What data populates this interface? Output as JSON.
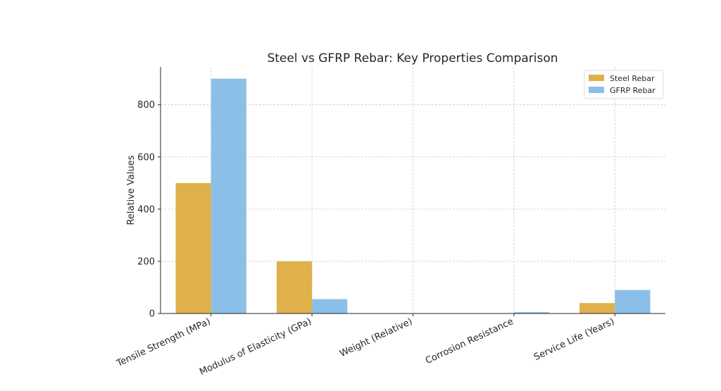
{
  "chart_data": {
    "type": "bar",
    "title": "Steel vs GFRP Rebar: Key Properties Comparison",
    "xlabel": "",
    "ylabel": "Relative Values",
    "categories": [
      "Tensile Strength (MPa)",
      "Modulus of Elasticity (GPa)",
      "Weight (Relative)",
      "Corrosion Resistance",
      "Service Life (Years)"
    ],
    "series": [
      {
        "name": "Steel Rebar",
        "color": "#E0B04A",
        "values": [
          500,
          200,
          1,
          1,
          40
        ]
      },
      {
        "name": "GFRP Rebar",
        "color": "#8BBFE8",
        "values": [
          900,
          55,
          0.25,
          5,
          90
        ]
      }
    ],
    "ylim": [
      0,
      945
    ],
    "yticks": [
      0,
      200,
      400,
      600,
      800
    ],
    "grid": true,
    "legend_position": "top-right"
  }
}
